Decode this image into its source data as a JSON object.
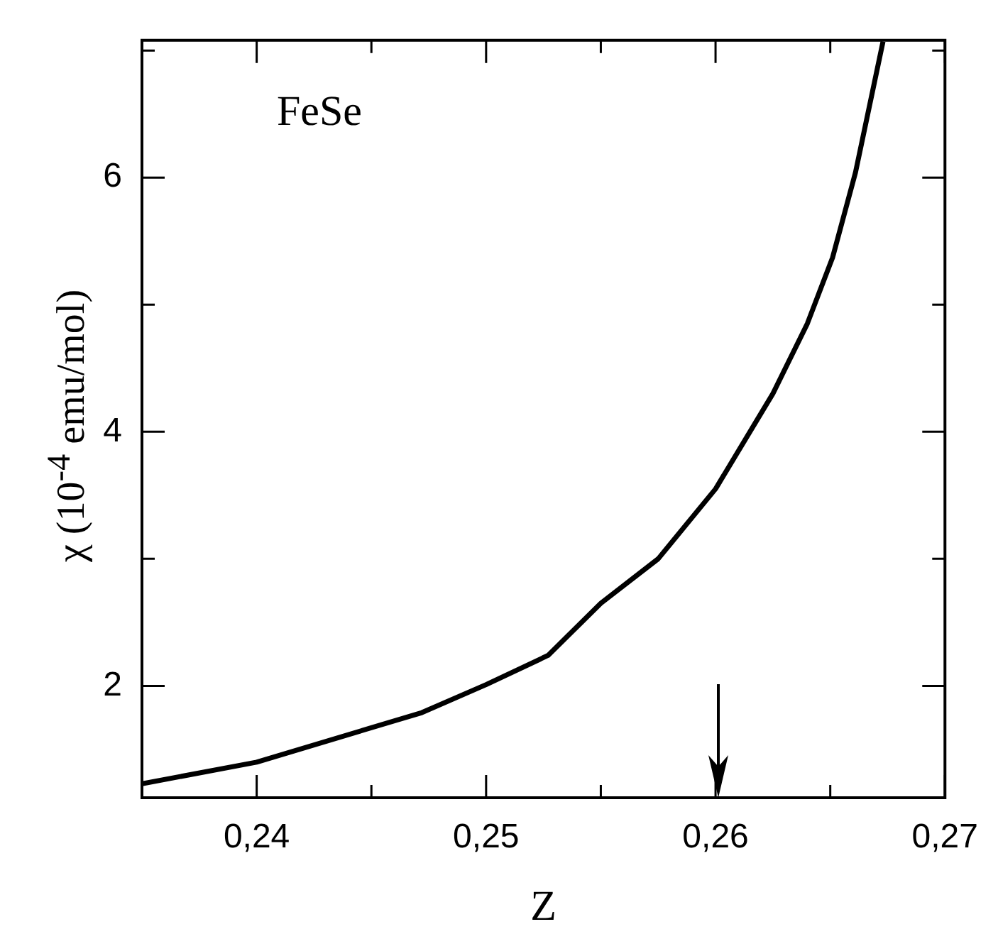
{
  "chart_data": {
    "type": "line",
    "xlabel": "Z",
    "ylabel": "χ (10$^{-4}$ emu/mol)",
    "annotations": [
      "FeSe"
    ],
    "series": [
      {
        "color": "#000000",
        "x": [
          0.235,
          0.24,
          0.2472,
          0.25,
          0.2527,
          0.255,
          0.2575,
          0.26,
          0.2625,
          0.264,
          0.2651,
          0.2661,
          0.2673
        ],
        "values": [
          1.23,
          1.4,
          1.79,
          2.01,
          2.24,
          2.65,
          3.0,
          3.55,
          4.3,
          4.85,
          5.37,
          6.04,
          7.07
        ]
      }
    ],
    "xlim": [
      0.235,
      0.27
    ],
    "ylim": [
      1.12,
      7.08
    ],
    "xticks": [
      {
        "value": 0.24,
        "label": "0,24"
      },
      {
        "value": 0.245,
        "label": null
      },
      {
        "value": 0.25,
        "label": "0,25"
      },
      {
        "value": 0.255,
        "label": null
      },
      {
        "value": 0.26,
        "label": "0,26"
      },
      {
        "value": 0.265,
        "label": null
      },
      {
        "value": 0.27,
        "label": "0,27"
      }
    ],
    "yticks": [
      2,
      {
        "value": 3,
        "label": null
      },
      4,
      {
        "value": 5,
        "label": null
      },
      6,
      {
        "value": 7,
        "label": null
      }
    ],
    "grid": false,
    "legend": false,
    "marker": "none",
    "line_style": "solid"
  }
}
